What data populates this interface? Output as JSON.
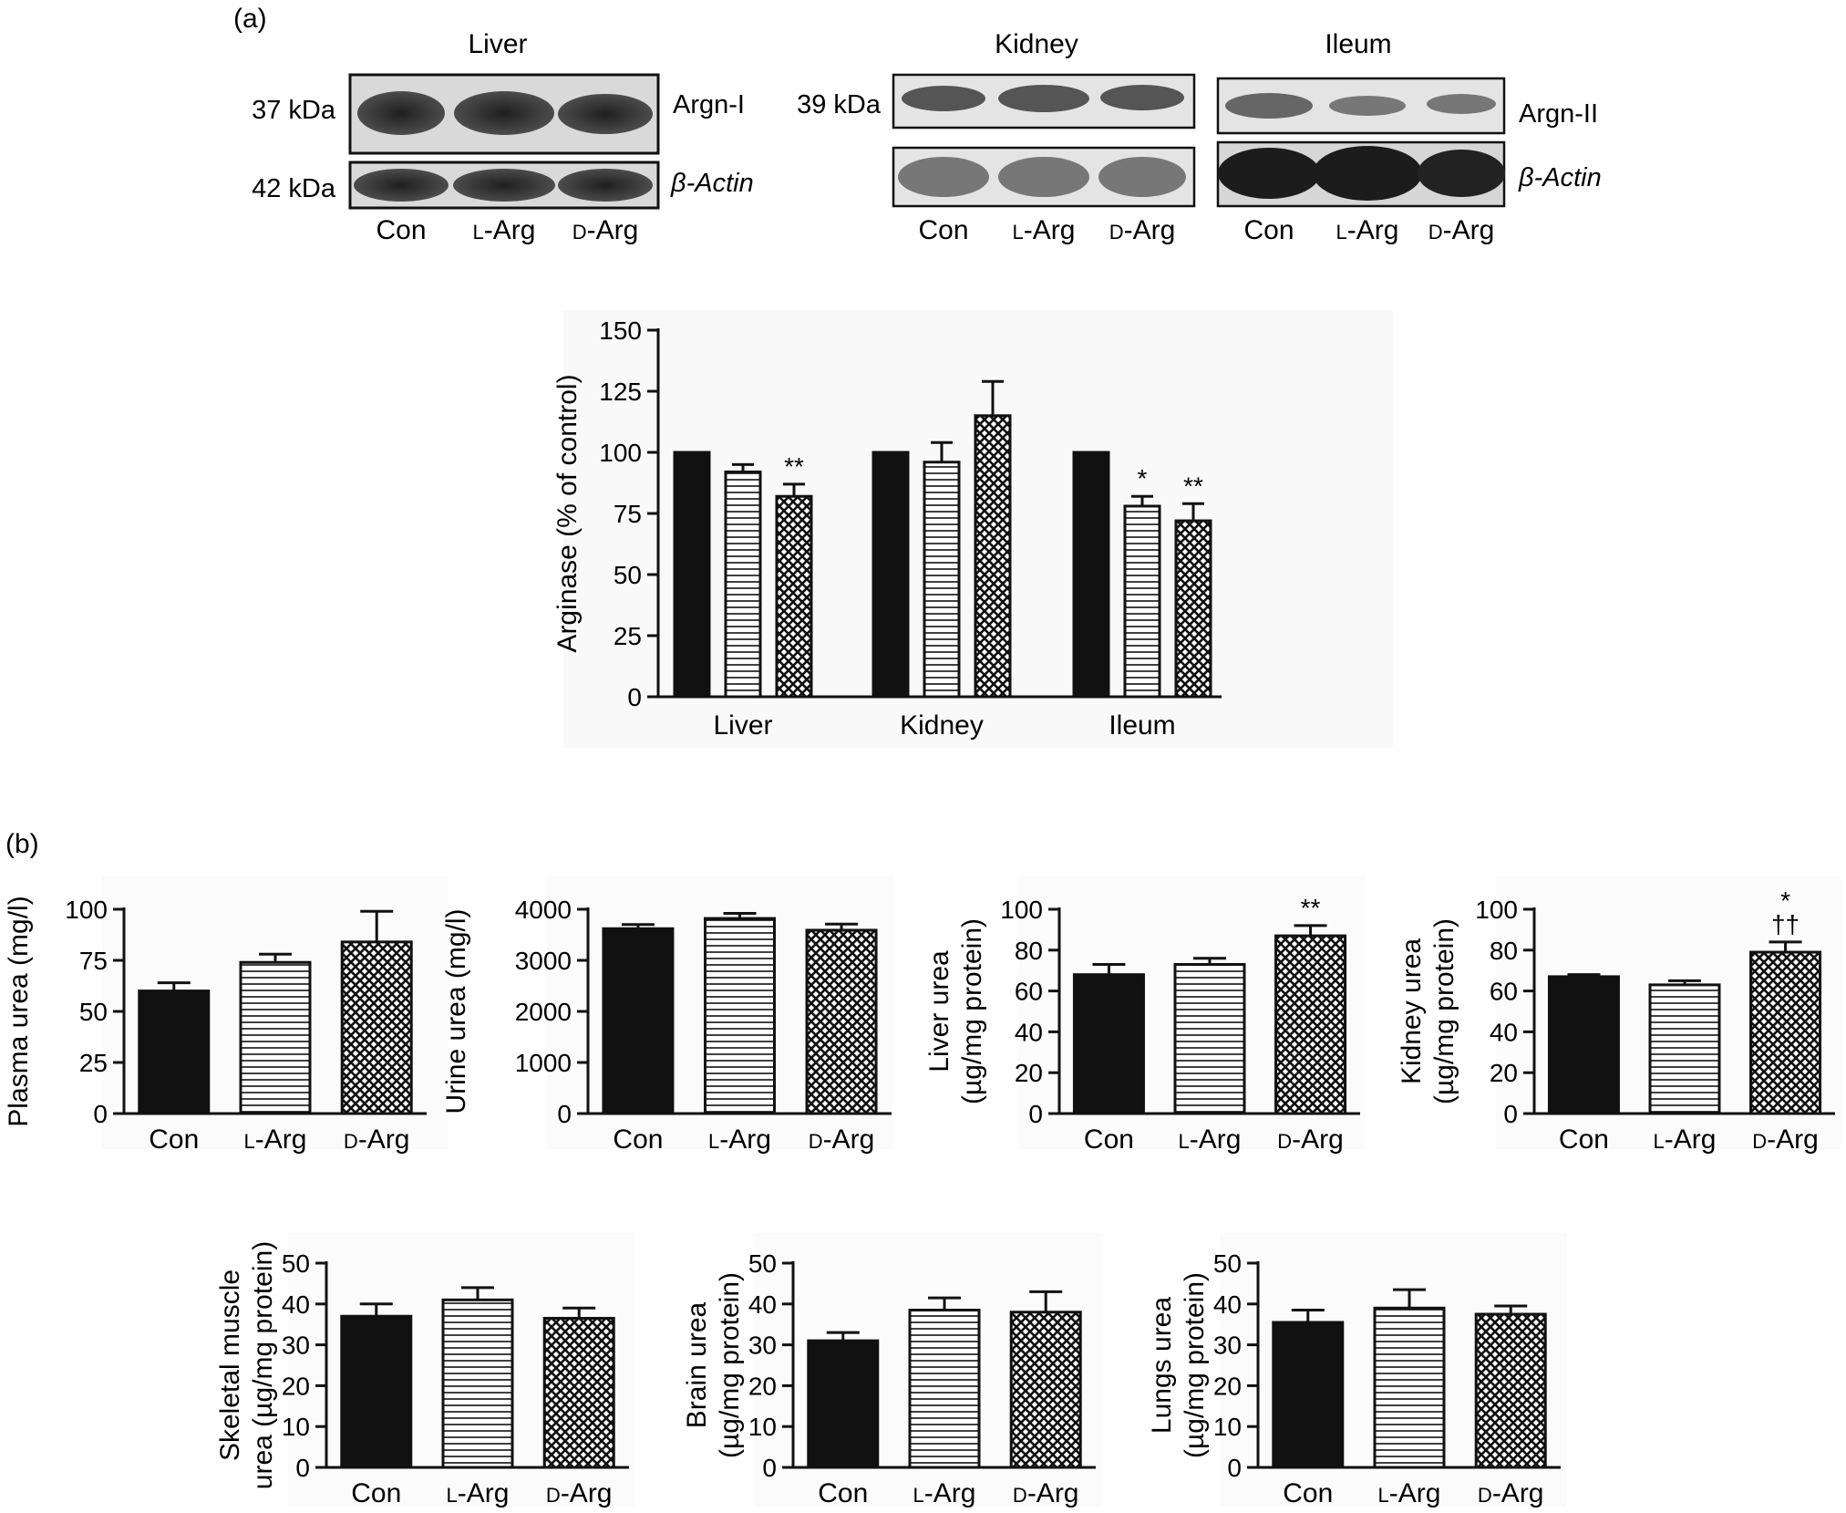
{
  "panel_labels": {
    "a": "(a)",
    "b": "(b)"
  },
  "western_blot": {
    "tissues": [
      "Liver",
      "Kidney",
      "Ileum"
    ],
    "mw_labels": {
      "argn1": "37 kDa",
      "actin_liver": "42 kDa",
      "argn2": "39 kDa"
    },
    "protein_labels": {
      "argn1": "Argn-I",
      "argn2": "Argn-II",
      "actin": "β-Actin"
    },
    "lanes": [
      {
        "prefix": "",
        "text": "Con"
      },
      {
        "prefix": "L",
        "text": "-Arg"
      },
      {
        "prefix": "D",
        "text": "-Arg"
      }
    ]
  },
  "group_labels": [
    {
      "prefix": "",
      "text": "Con"
    },
    {
      "prefix": "L",
      "text": "-Arg"
    },
    {
      "prefix": "D",
      "text": "-Arg"
    }
  ],
  "colors": {
    "bar": "#111111",
    "axis": "#111111",
    "blot_bg": "#dcdcdc",
    "band": "#3a3a3a"
  },
  "chart_data": [
    {
      "id": "arginase",
      "type": "bar",
      "ylabel": "Arginase (% of control)",
      "ylim": [
        0,
        150
      ],
      "yticks": [
        0,
        25,
        50,
        75,
        100,
        125,
        150
      ],
      "categories": [
        "Liver",
        "Kidney",
        "Ileum"
      ],
      "patterns": [
        "solid",
        "hlines",
        "cross"
      ],
      "series": [
        {
          "values": [
            100,
            100,
            100
          ],
          "errors": [
            0,
            0,
            0
          ]
        },
        {
          "values": [
            92,
            96,
            78
          ],
          "errors": [
            3,
            8,
            4
          ]
        },
        {
          "values": [
            82,
            115,
            72
          ],
          "errors": [
            5,
            14,
            7
          ]
        }
      ],
      "annotations": [
        {
          "category": 0,
          "series": 2,
          "text": "**"
        },
        {
          "category": 2,
          "series": 1,
          "text": "*"
        },
        {
          "category": 2,
          "series": 2,
          "text": "**"
        }
      ]
    },
    {
      "id": "plasma",
      "type": "bar",
      "ylabel": [
        "Plasma urea (mg/l)"
      ],
      "ylim": [
        0,
        100
      ],
      "yticks": [
        0,
        25,
        50,
        75,
        100
      ],
      "values": [
        60,
        74,
        84
      ],
      "errors": [
        4,
        4,
        15
      ],
      "annotations": []
    },
    {
      "id": "urine",
      "type": "bar",
      "ylabel": [
        "Urine urea (mg/l)"
      ],
      "ylim": [
        0,
        4000
      ],
      "yticks": [
        0,
        1000,
        2000,
        3000,
        4000
      ],
      "values": [
        3620,
        3820,
        3590
      ],
      "errors": [
        80,
        100,
        120
      ],
      "annotations": []
    },
    {
      "id": "liver",
      "type": "bar",
      "ylabel": [
        "Liver urea",
        "(µg/mg protein)"
      ],
      "ylim": [
        0,
        100
      ],
      "yticks": [
        0,
        20,
        40,
        60,
        80,
        100
      ],
      "values": [
        68,
        73,
        87
      ],
      "errors": [
        5,
        3,
        5
      ],
      "annotations": [
        {
          "index": 2,
          "lines": [
            "**"
          ]
        }
      ]
    },
    {
      "id": "kidney",
      "type": "bar",
      "ylabel": [
        "Kidney urea",
        "(µg/mg protein)"
      ],
      "ylim": [
        0,
        100
      ],
      "yticks": [
        0,
        20,
        40,
        60,
        80,
        100
      ],
      "values": [
        67,
        63,
        79
      ],
      "errors": [
        1,
        2,
        5
      ],
      "annotations": [
        {
          "index": 2,
          "lines": [
            "*",
            "††"
          ]
        }
      ]
    },
    {
      "id": "skeletal",
      "type": "bar",
      "ylabel": [
        "Skeletal muscle",
        "urea (µg/mg protein)"
      ],
      "ylim": [
        0,
        50
      ],
      "yticks": [
        0,
        10,
        20,
        30,
        40,
        50
      ],
      "values": [
        37,
        41,
        36.5
      ],
      "errors": [
        3,
        3,
        2.5
      ],
      "annotations": []
    },
    {
      "id": "brain",
      "type": "bar",
      "ylabel": [
        "Brain urea",
        "(µg/mg protein)"
      ],
      "ylim": [
        0,
        50
      ],
      "yticks": [
        0,
        10,
        20,
        30,
        40,
        50
      ],
      "values": [
        31,
        38.5,
        38
      ],
      "errors": [
        2,
        3,
        5
      ],
      "annotations": []
    },
    {
      "id": "lungs",
      "type": "bar",
      "ylabel": [
        "Lungs urea",
        "(µg/mg protein)"
      ],
      "ylim": [
        0,
        50
      ],
      "yticks": [
        0,
        10,
        20,
        30,
        40,
        50
      ],
      "values": [
        35.5,
        39,
        37.5
      ],
      "errors": [
        3,
        4.5,
        2
      ],
      "annotations": []
    }
  ]
}
